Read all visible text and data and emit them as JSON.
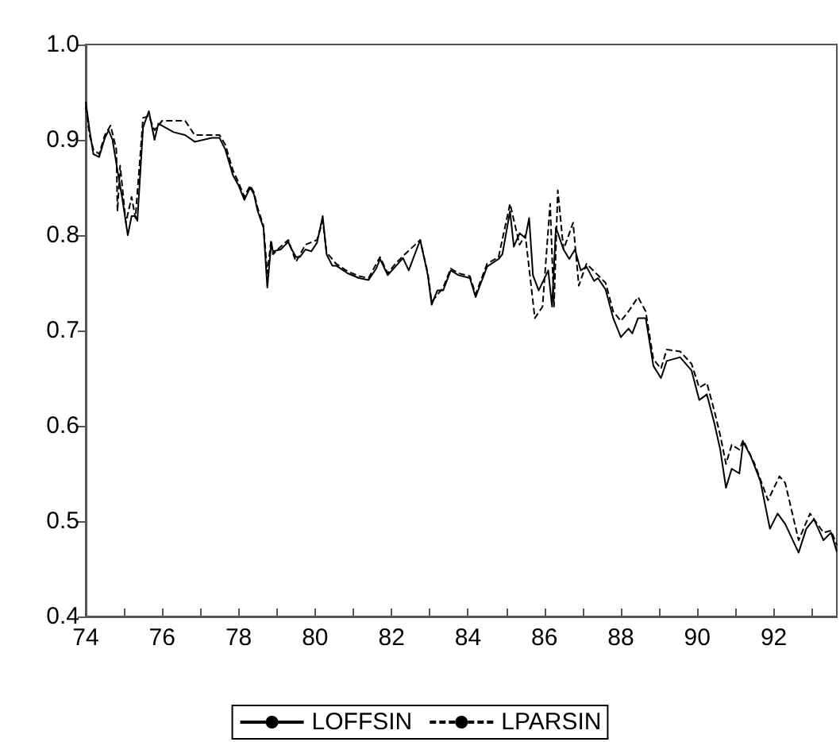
{
  "chart_data": {
    "type": "line",
    "legend": "bottom",
    "grid": false,
    "marker": "none",
    "xlim": [
      74,
      93.65
    ],
    "xticks": [
      74,
      {
        "value": 75,
        "label": null
      },
      76,
      {
        "value": 77,
        "label": null
      },
      78,
      {
        "value": 79,
        "label": null
      },
      80,
      {
        "value": 81,
        "label": null
      },
      82,
      {
        "value": 83,
        "label": null
      },
      84,
      {
        "value": 85,
        "label": null
      },
      86,
      {
        "value": 87,
        "label": null
      },
      88,
      {
        "value": 89,
        "label": null
      },
      90,
      {
        "value": 91,
        "label": null
      },
      92,
      {
        "value": 93,
        "label": null
      }
    ],
    "ylim": [
      0.4,
      1.0
    ],
    "yticks": [
      0.4,
      0.5,
      0.6,
      0.7,
      0.8,
      0.9,
      {
        "value": 1.0,
        "label": "1.0"
      }
    ],
    "series": [
      {
        "name": "LOFFSIN",
        "color": "#000000",
        "line_style": "solid",
        "x": [
          74.0,
          74.1,
          74.2,
          74.35,
          74.5,
          74.6,
          74.7,
          74.85,
          74.95,
          75.1,
          75.2,
          75.3,
          75.35,
          75.5,
          75.65,
          75.8,
          75.9,
          76.3,
          76.6,
          76.85,
          77.3,
          77.5,
          77.65,
          77.85,
          78.0,
          78.15,
          78.3,
          78.4,
          78.5,
          78.65,
          78.75,
          78.85,
          78.9,
          79.1,
          79.3,
          79.35,
          79.5,
          79.6,
          79.75,
          79.9,
          80.05,
          80.2,
          80.3,
          80.45,
          80.55,
          80.85,
          81.15,
          81.4,
          81.6,
          81.7,
          81.9,
          82.1,
          82.3,
          82.45,
          82.75,
          82.95,
          83.05,
          83.2,
          83.35,
          83.55,
          83.75,
          84.05,
          84.2,
          84.5,
          84.8,
          84.9,
          85.1,
          85.2,
          85.35,
          85.5,
          85.6,
          85.7,
          85.85,
          86.1,
          86.2,
          86.3,
          86.5,
          86.65,
          86.8,
          86.95,
          87.1,
          87.3,
          87.4,
          87.6,
          87.8,
          88.0,
          88.2,
          88.3,
          88.45,
          88.65,
          88.85,
          89.05,
          89.2,
          89.55,
          89.85,
          90.05,
          90.25,
          90.45,
          90.6,
          90.75,
          90.9,
          91.1,
          91.2,
          91.4,
          91.65,
          91.9,
          92.1,
          92.3,
          92.65,
          92.85,
          93.05,
          93.3,
          93.5,
          93.65
        ],
        "values": [
          0.94,
          0.91,
          0.885,
          0.882,
          0.902,
          0.91,
          0.9,
          0.863,
          0.84,
          0.8,
          0.82,
          0.82,
          0.815,
          0.913,
          0.93,
          0.9,
          0.917,
          0.908,
          0.905,
          0.898,
          0.902,
          0.902,
          0.89,
          0.863,
          0.852,
          0.837,
          0.85,
          0.843,
          0.825,
          0.808,
          0.745,
          0.79,
          0.783,
          0.785,
          0.793,
          0.788,
          0.777,
          0.777,
          0.785,
          0.783,
          0.792,
          0.82,
          0.78,
          0.768,
          0.768,
          0.76,
          0.755,
          0.753,
          0.765,
          0.775,
          0.758,
          0.767,
          0.776,
          0.763,
          0.795,
          0.758,
          0.727,
          0.742,
          0.742,
          0.763,
          0.758,
          0.755,
          0.735,
          0.767,
          0.775,
          0.78,
          0.825,
          0.788,
          0.802,
          0.797,
          0.818,
          0.758,
          0.742,
          0.763,
          0.725,
          0.808,
          0.785,
          0.775,
          0.785,
          0.763,
          0.767,
          0.752,
          0.755,
          0.743,
          0.713,
          0.693,
          0.702,
          0.697,
          0.713,
          0.713,
          0.663,
          0.65,
          0.668,
          0.672,
          0.658,
          0.627,
          0.633,
          0.602,
          0.575,
          0.535,
          0.555,
          0.55,
          0.583,
          0.568,
          0.542,
          0.492,
          0.508,
          0.497,
          0.467,
          0.492,
          0.502,
          0.48,
          0.488,
          0.468
        ]
      },
      {
        "name": "LPARSIN",
        "color": "#000000",
        "line_style": "dashed",
        "x": [
          74.0,
          74.1,
          74.2,
          74.35,
          74.5,
          74.65,
          74.8,
          74.83,
          74.9,
          75.05,
          75.2,
          75.3,
          75.5,
          75.65,
          75.8,
          76.0,
          76.3,
          76.6,
          76.85,
          77.3,
          77.5,
          77.65,
          77.85,
          78.0,
          78.15,
          78.3,
          78.4,
          78.5,
          78.65,
          78.75,
          78.85,
          78.9,
          79.1,
          79.3,
          79.5,
          79.75,
          80.05,
          80.2,
          80.3,
          80.55,
          80.85,
          81.15,
          81.4,
          81.7,
          81.9,
          82.1,
          82.3,
          82.75,
          82.95,
          83.05,
          83.35,
          83.55,
          83.75,
          84.05,
          84.2,
          84.5,
          84.8,
          85.1,
          85.35,
          85.5,
          85.75,
          85.95,
          86.15,
          86.25,
          86.35,
          86.5,
          86.75,
          86.9,
          87.1,
          87.4,
          87.6,
          87.8,
          88.0,
          88.2,
          88.45,
          88.65,
          88.85,
          89.05,
          89.2,
          89.55,
          89.85,
          90.05,
          90.25,
          90.45,
          90.6,
          90.75,
          90.9,
          91.1,
          91.2,
          91.5,
          91.85,
          92.15,
          92.3,
          92.65,
          92.95,
          93.3,
          93.5,
          93.65
        ],
        "values": [
          0.935,
          0.905,
          0.89,
          0.885,
          0.905,
          0.915,
          0.89,
          0.825,
          0.873,
          0.813,
          0.84,
          0.818,
          0.923,
          0.925,
          0.91,
          0.92,
          0.92,
          0.92,
          0.905,
          0.905,
          0.905,
          0.895,
          0.868,
          0.855,
          0.84,
          0.852,
          0.845,
          0.828,
          0.81,
          0.76,
          0.795,
          0.78,
          0.788,
          0.795,
          0.772,
          0.79,
          0.795,
          0.815,
          0.782,
          0.77,
          0.762,
          0.757,
          0.755,
          0.777,
          0.76,
          0.77,
          0.778,
          0.795,
          0.76,
          0.73,
          0.745,
          0.765,
          0.76,
          0.757,
          0.738,
          0.77,
          0.777,
          0.833,
          0.79,
          0.8,
          0.713,
          0.725,
          0.833,
          0.725,
          0.847,
          0.785,
          0.813,
          0.747,
          0.77,
          0.758,
          0.75,
          0.72,
          0.71,
          0.72,
          0.735,
          0.72,
          0.67,
          0.66,
          0.68,
          0.678,
          0.665,
          0.64,
          0.645,
          0.615,
          0.59,
          0.56,
          0.58,
          0.575,
          0.585,
          0.56,
          0.522,
          0.547,
          0.54,
          0.48,
          0.508,
          0.488,
          0.49,
          0.475
        ]
      }
    ]
  }
}
